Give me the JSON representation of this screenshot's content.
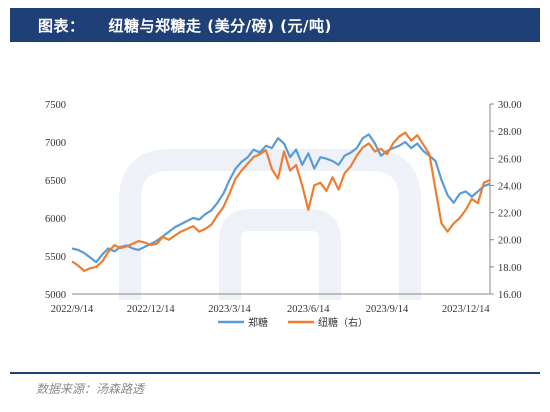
{
  "header": {
    "prefix": "图表：",
    "title": "纽糖与郑糖走 (美分/磅) (元/吨)"
  },
  "source": "数据来源：汤森路透",
  "colors": {
    "header_bg": "#1f3f77",
    "zheng": "#5b9bd5",
    "niu": "#ed7d31",
    "watermark": "#eef2f8"
  },
  "chart_data": {
    "type": "line",
    "title": "",
    "x_ticks": [
      "2022/9/14",
      "2022/12/14",
      "2023/3/14",
      "2023/6/14",
      "2023/9/14",
      "2023/12/14"
    ],
    "x_tick_pos": [
      0,
      13,
      26,
      39,
      52,
      65
    ],
    "y_left": {
      "lim": [
        5000,
        7500
      ],
      "ticks": [
        "7500",
        "7000",
        "6500",
        "6000",
        "5500",
        "5000"
      ]
    },
    "y_right": {
      "lim": [
        16,
        30
      ],
      "ticks": [
        "30.00",
        "28.00",
        "26.00",
        "24.00",
        "22.00",
        "20.00",
        "18.00",
        "16.00"
      ]
    },
    "legend_position": "bottom",
    "series": [
      {
        "name": "郑糖",
        "axis": "left",
        "values": [
          5600,
          5580,
          5540,
          5480,
          5420,
          5520,
          5600,
          5560,
          5620,
          5640,
          5600,
          5580,
          5620,
          5660,
          5700,
          5760,
          5820,
          5880,
          5920,
          5960,
          6000,
          5980,
          6050,
          6100,
          6200,
          6320,
          6500,
          6650,
          6740,
          6800,
          6900,
          6860,
          6950,
          6920,
          7050,
          6980,
          6800,
          6900,
          6700,
          6850,
          6650,
          6800,
          6780,
          6750,
          6700,
          6820,
          6860,
          6920,
          7050,
          7100,
          6980,
          6820,
          6880,
          6920,
          6950,
          7000,
          6920,
          6980,
          6880,
          6820,
          6750,
          6500,
          6300,
          6200,
          6320,
          6350,
          6280,
          6350,
          6420,
          6450
        ]
      },
      {
        "name": "纽糖（右）",
        "axis": "right",
        "values": [
          18.4,
          18.1,
          17.7,
          17.9,
          18.0,
          18.4,
          19.1,
          19.6,
          19.4,
          19.5,
          19.7,
          19.9,
          19.8,
          19.6,
          19.7,
          20.2,
          20.0,
          20.3,
          20.6,
          20.8,
          21.0,
          20.6,
          20.8,
          21.1,
          21.8,
          22.4,
          23.4,
          24.5,
          25.1,
          25.6,
          26.1,
          26.3,
          26.6,
          25.2,
          24.5,
          26.5,
          25.1,
          25.5,
          24.0,
          22.2,
          24.0,
          24.2,
          23.6,
          24.6,
          23.7,
          24.9,
          25.4,
          26.2,
          26.8,
          27.1,
          26.5,
          26.7,
          26.3,
          27.1,
          27.6,
          27.9,
          27.3,
          27.7,
          27.0,
          26.3,
          23.7,
          21.2,
          20.6,
          21.2,
          21.6,
          22.2,
          23.0,
          22.7,
          24.2,
          24.4
        ]
      }
    ]
  }
}
